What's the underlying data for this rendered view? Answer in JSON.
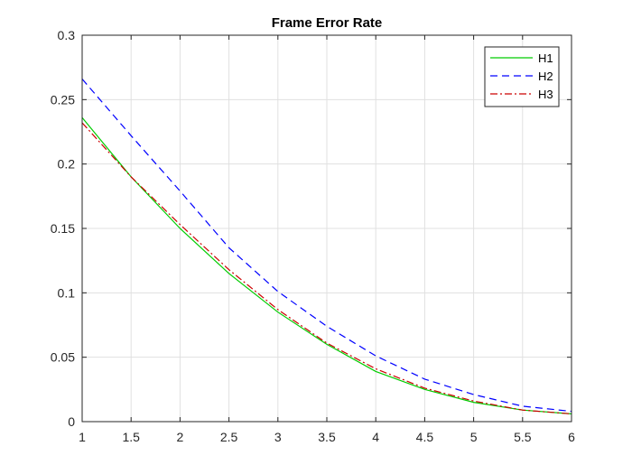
{
  "chart_data": {
    "type": "line",
    "title": "Frame Error Rate",
    "xlabel": "",
    "ylabel": "",
    "xlim": [
      1,
      6
    ],
    "ylim": [
      0,
      0.3
    ],
    "grid": true,
    "legend_position": "top-right",
    "x": [
      1,
      1.5,
      2,
      2.5,
      3,
      3.5,
      4,
      4.5,
      5,
      5.5,
      6
    ],
    "x_ticks": [
      "1",
      "1.5",
      "2",
      "2.5",
      "3",
      "3.5",
      "4",
      "4.5",
      "5",
      "5.5",
      "6"
    ],
    "y_ticks": [
      {
        "value": 0,
        "label": "0"
      },
      {
        "value": 0.05,
        "label": "0.05"
      },
      {
        "value": 0.1,
        "label": "0.1"
      },
      {
        "value": 0.15,
        "label": "0.15"
      },
      {
        "value": 0.2,
        "label": "0.2"
      },
      {
        "value": 0.25,
        "label": "0.25"
      },
      {
        "value": 0.3,
        "label": "0.3"
      }
    ],
    "series": [
      {
        "name": "H1",
        "color": "#00cc00",
        "dash": "solid",
        "values": [
          0.236,
          0.19,
          0.15,
          0.115,
          0.085,
          0.06,
          0.039,
          0.025,
          0.015,
          0.009,
          0.006
        ]
      },
      {
        "name": "H2",
        "color": "#0000ff",
        "dash": "dashed",
        "values": [
          0.266,
          0.222,
          0.179,
          0.135,
          0.101,
          0.074,
          0.051,
          0.033,
          0.021,
          0.012,
          0.008
        ]
      },
      {
        "name": "H3",
        "color": "#cc0000",
        "dash": "dashdot",
        "values": [
          0.232,
          0.19,
          0.153,
          0.118,
          0.087,
          0.061,
          0.041,
          0.026,
          0.016,
          0.009,
          0.006
        ]
      }
    ]
  }
}
